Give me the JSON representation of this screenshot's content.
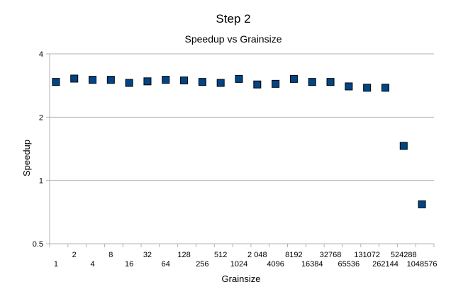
{
  "chart_data": {
    "type": "scatter",
    "title": "Step 2",
    "subtitle": "Speedup vs Grainsize",
    "xlabel": "Grainsize",
    "ylabel": "Speedup",
    "y_scale": "log2",
    "ylim": [
      0.5,
      4
    ],
    "y_ticks": [
      "0.5",
      "1",
      "2",
      "4"
    ],
    "grid": "horizontal",
    "marker_color": "#004586",
    "x": [
      "1",
      "2",
      "4",
      "8",
      "16",
      "32",
      "64",
      "128",
      "256",
      "512",
      "1024",
      "2048",
      "4096",
      "8192",
      "16384",
      "32768",
      "65536",
      "131072",
      "262144",
      "524288",
      "1048576"
    ],
    "x_tick_labels": [
      "1",
      "2",
      "4",
      "8",
      "16",
      "32",
      "64",
      "128",
      "256",
      "512",
      "1024",
      "2 048",
      "4096",
      "8192",
      "16384",
      "32768",
      "65536",
      "131072",
      "262144",
      "524288",
      "1048576"
    ],
    "values": [
      2.94,
      3.05,
      3.01,
      3.01,
      2.91,
      2.96,
      3.01,
      2.99,
      2.94,
      2.91,
      3.04,
      2.86,
      2.88,
      3.04,
      2.94,
      2.94,
      2.8,
      2.76,
      2.76,
      1.46,
      0.77
    ]
  }
}
